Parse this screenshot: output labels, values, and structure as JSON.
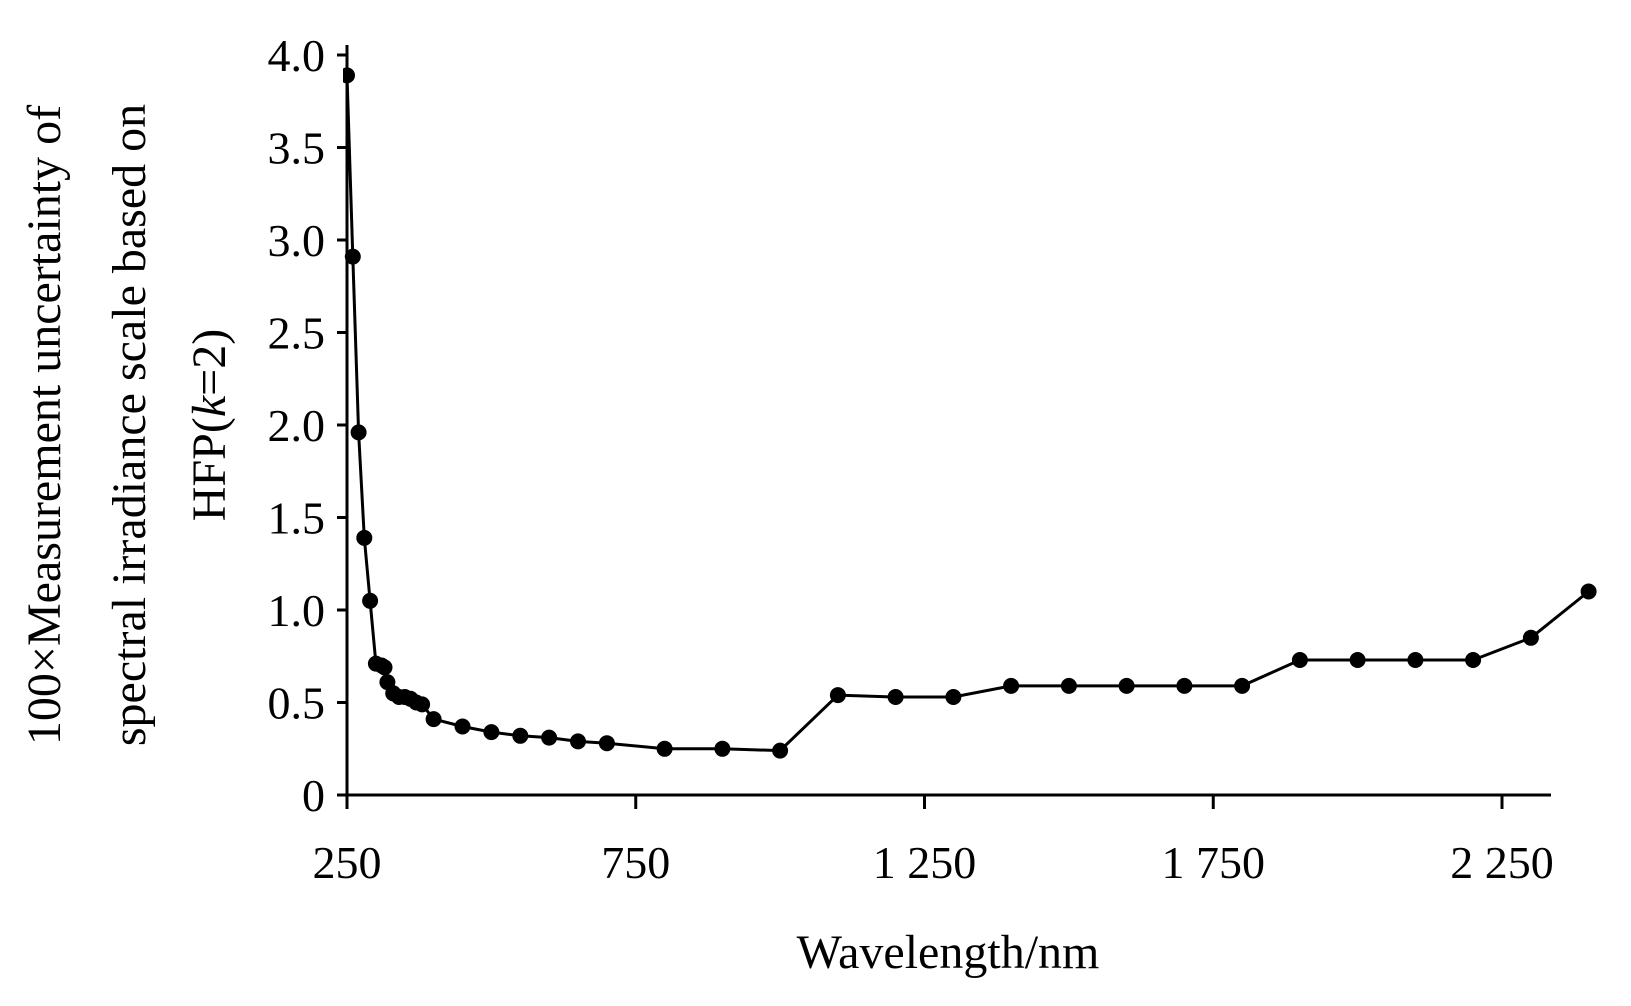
{
  "chart_data": {
    "type": "line",
    "xlabel": "Wavelength/nm",
    "ylabel_lines": [
      "100×Measurement uncertainty of",
      "spectral irradiance scale based on",
      "HFP(k=2)"
    ],
    "ylabel_k": "k",
    "xlim": [
      250,
      2290
    ],
    "ylim": [
      0,
      4.0
    ],
    "x_ticks": [
      250,
      750,
      1250,
      1750,
      2250
    ],
    "x_tick_labels": [
      "250",
      "750",
      "1 250",
      "1 750",
      "2 250"
    ],
    "y_ticks": [
      0,
      0.5,
      1.0,
      1.5,
      2.0,
      2.5,
      3.0,
      3.5,
      4.0
    ],
    "y_tick_labels": [
      "0",
      "0.5",
      "1.0",
      "1.5",
      "2.0",
      "2.5",
      "3.0",
      "3.5",
      "4.0"
    ],
    "grid": false,
    "series": [
      {
        "color": "#000000",
        "marker": "circle",
        "x": [
          250,
          260,
          270,
          280,
          290,
          300,
          310,
          315,
          320,
          330,
          340,
          350,
          360,
          370,
          380,
          400,
          450,
          500,
          550,
          600,
          650,
          700,
          800,
          900,
          1000,
          1100,
          1200,
          1300,
          1400,
          1500,
          1600,
          1700,
          1800,
          1900,
          2000,
          2100,
          2200,
          2300,
          2400
        ],
        "y": [
          3.89,
          2.91,
          1.96,
          1.39,
          1.05,
          0.71,
          0.7,
          0.69,
          0.61,
          0.55,
          0.53,
          0.53,
          0.52,
          0.5,
          0.49,
          0.41,
          0.37,
          0.34,
          0.32,
          0.31,
          0.29,
          0.28,
          0.25,
          0.25,
          0.24,
          0.54,
          0.53,
          0.53,
          0.59,
          0.59,
          0.59,
          0.59,
          0.59,
          0.73,
          0.73,
          0.73,
          0.73,
          0.85,
          1.1
        ]
      }
    ]
  }
}
